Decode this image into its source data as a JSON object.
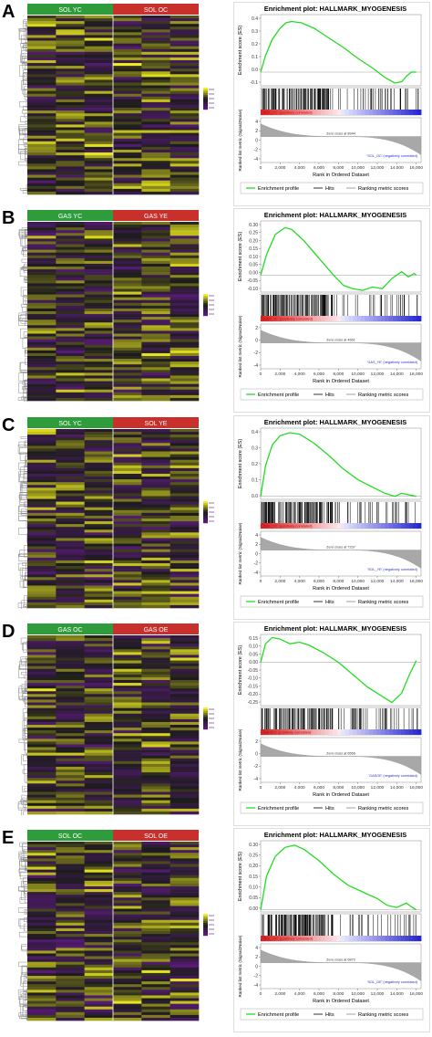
{
  "colors": {
    "group_left": "#2e9c3a",
    "group_right": "#c8302c",
    "heat_low": "#5a1a7a",
    "heat_mid": "#1c1c1c",
    "heat_high": "#f2f01e",
    "enrichment_line": "#22dd22",
    "hits": "#000000",
    "metric_fill": "#a8a8a8"
  },
  "panels": [
    {
      "letter": "A",
      "heatmap": {
        "group_left": "SOL YC",
        "group_right": "SOL OC",
        "seed": 11
      },
      "gsea": {
        "title": "Enrichment plot: HALLMARK_MYOGENESIS",
        "es_ticks": [
          "0.4",
          "0.3",
          "0.2",
          "0.1",
          "0.0",
          "-0.1"
        ],
        "es_range": [
          -0.1,
          0.42
        ],
        "es_curve": [
          [
            0,
            0
          ],
          [
            500,
            0.12
          ],
          [
            1200,
            0.24
          ],
          [
            2000,
            0.32
          ],
          [
            2600,
            0.36
          ],
          [
            3200,
            0.37
          ],
          [
            4200,
            0.36
          ],
          [
            5500,
            0.32
          ],
          [
            7000,
            0.25
          ],
          [
            8500,
            0.18
          ],
          [
            10000,
            0.1
          ],
          [
            11500,
            0.03
          ],
          [
            12800,
            -0.04
          ],
          [
            13800,
            -0.08
          ],
          [
            14500,
            -0.07
          ],
          [
            15000,
            -0.03
          ],
          [
            15500,
            0.0
          ],
          [
            16000,
            0.0
          ]
        ],
        "pos_label": "'SOL_YC' (positively correlated)",
        "neg_label": "'SOL_OC' (negatively correlated)",
        "zero_cross": "Zero cross at 8944",
        "metric_ticks": [
          "4",
          "2",
          "0",
          "-2",
          "-4"
        ],
        "x_ticks": [
          "0",
          "2,000",
          "4,000",
          "6,000",
          "8,000",
          "10,000",
          "12,000",
          "14,000",
          "16,000"
        ],
        "x_label": "Rank in Ordered Dataset",
        "y_label_es": "Enrichment score (ES)",
        "y_label_metric": "Ranked list metric (Signal2Noise)",
        "legend": [
          "Enrichment profile",
          "Hits",
          "Ranking metric scores"
        ],
        "hit_seed": 3
      }
    },
    {
      "letter": "B",
      "heatmap": {
        "group_left": "GAS YC",
        "group_right": "GAS YE",
        "seed": 23
      },
      "gsea": {
        "title": "Enrichment plot: HALLMARK_MYOGENESIS",
        "es_ticks": [
          "0.30",
          "0.25",
          "0.20",
          "0.15",
          "0.10",
          "0.05",
          "0.00",
          "-0.05",
          "-0.10"
        ],
        "es_range": [
          -0.1,
          0.32
        ],
        "es_curve": [
          [
            0,
            0
          ],
          [
            600,
            0.12
          ],
          [
            1500,
            0.24
          ],
          [
            2500,
            0.28
          ],
          [
            3200,
            0.27
          ],
          [
            4500,
            0.2
          ],
          [
            6000,
            0.1
          ],
          [
            7500,
            0.0
          ],
          [
            8500,
            -0.06
          ],
          [
            9500,
            -0.08
          ],
          [
            10500,
            -0.09
          ],
          [
            11500,
            -0.07
          ],
          [
            12500,
            -0.08
          ],
          [
            13500,
            -0.02
          ],
          [
            14500,
            0.02
          ],
          [
            15200,
            -0.01
          ],
          [
            15800,
            0.01
          ],
          [
            16000,
            0.0
          ]
        ],
        "pos_label": "'GAS_YC' (positively correlated)",
        "neg_label": "'GAS_YE' (negatively correlated)",
        "zero_cross": "Zero cross at 4661",
        "metric_ticks": [
          "2",
          "0",
          "-2",
          "-4"
        ],
        "x_ticks": [
          "0",
          "2,000",
          "4,000",
          "6,000",
          "8,000",
          "10,000",
          "12,000",
          "14,000",
          "16,000"
        ],
        "x_label": "Rank in Ordered Dataset",
        "y_label_es": "Enrichment score (ES)",
        "y_label_metric": "Ranked list metric (Signal2Noise)",
        "legend": [
          "Enrichment profile",
          "Hits",
          "Ranking metric scores"
        ],
        "hit_seed": 9
      }
    },
    {
      "letter": "C",
      "heatmap": {
        "group_left": "SOL YC",
        "group_right": "SOL YE",
        "seed": 37
      },
      "gsea": {
        "title": "Enrichment plot: HALLMARK_MYOGENESIS",
        "es_ticks": [
          "0.4",
          "0.3",
          "0.2",
          "0.1",
          "0.0"
        ],
        "es_range": [
          -0.02,
          0.45
        ],
        "es_curve": [
          [
            0,
            0
          ],
          [
            500,
            0.2
          ],
          [
            1200,
            0.34
          ],
          [
            2000,
            0.4
          ],
          [
            3000,
            0.42
          ],
          [
            4000,
            0.41
          ],
          [
            5500,
            0.35
          ],
          [
            7000,
            0.27
          ],
          [
            8500,
            0.18
          ],
          [
            10000,
            0.11
          ],
          [
            11500,
            0.06
          ],
          [
            12800,
            0.02
          ],
          [
            13800,
            0.0
          ],
          [
            14500,
            0.02
          ],
          [
            15200,
            0.01
          ],
          [
            16000,
            0.0
          ]
        ],
        "pos_label": "'SOL_YC' (positively correlated)",
        "neg_label": "'SOL_YE' (negatively correlated)",
        "zero_cross": "Zero cross at 7237",
        "metric_ticks": [
          "4",
          "2",
          "0",
          "-2",
          "-4"
        ],
        "x_ticks": [
          "0",
          "2,000",
          "4,000",
          "6,000",
          "8,000",
          "10,000",
          "12,000",
          "14,000",
          "16,000"
        ],
        "x_label": "Rank in Ordered Dataset",
        "y_label_es": "Enrichment score (ES)",
        "y_label_metric": "Ranked list metric (Signal2Noise)",
        "legend": [
          "Enrichment profile",
          "Hits",
          "Ranking metric scores"
        ],
        "hit_seed": 17
      }
    },
    {
      "letter": "D",
      "heatmap": {
        "group_left": "GAS OC",
        "group_right": "GAS OE",
        "seed": 51
      },
      "gsea": {
        "title": "Enrichment plot: HALLMARK_MYOGENESIS",
        "es_ticks": [
          "0.15",
          "0.10",
          "0.05",
          "0.00",
          "-0.05",
          "-0.10",
          "-0.15",
          "-0.20",
          "-0.25"
        ],
        "es_range": [
          -0.28,
          0.18
        ],
        "es_curve": [
          [
            0,
            0
          ],
          [
            500,
            0.12
          ],
          [
            1200,
            0.16
          ],
          [
            2000,
            0.15
          ],
          [
            3000,
            0.12
          ],
          [
            4000,
            0.13
          ],
          [
            5000,
            0.11
          ],
          [
            6500,
            0.06
          ],
          [
            8000,
            0.0
          ],
          [
            9500,
            -0.08
          ],
          [
            11000,
            -0.16
          ],
          [
            12500,
            -0.22
          ],
          [
            13500,
            -0.26
          ],
          [
            14500,
            -0.2
          ],
          [
            15300,
            -0.08
          ],
          [
            16000,
            0.01
          ]
        ],
        "pos_label": "'GASOC' (positively correlated)",
        "neg_label": "'GASOE' (negatively correlated)",
        "zero_cross": "Zero cross at 6566",
        "metric_ticks": [
          "2",
          "0",
          "-2",
          "-4"
        ],
        "x_ticks": [
          "0",
          "2,000",
          "4,000",
          "6,000",
          "8,000",
          "10,000",
          "12,000",
          "14,000",
          "16,000"
        ],
        "x_label": "Rank in Ordered Dataset",
        "y_label_es": "Enrichment score (ES)",
        "y_label_metric": "Ranked list metric (Signal2Noise)",
        "legend": [
          "Enrichment profile",
          "Hits",
          "Ranking metric scores"
        ],
        "hit_seed": 29
      }
    },
    {
      "letter": "E",
      "heatmap": {
        "group_left": "SOL OC",
        "group_right": "SOL OE",
        "seed": 67
      },
      "gsea": {
        "title": "Enrichment plot: HALLMARK_MYOGENESIS",
        "es_ticks": [
          "0.30",
          "0.25",
          "0.20",
          "0.15",
          "0.10",
          "0.05",
          "0.00"
        ],
        "es_range": [
          -0.01,
          0.31
        ],
        "es_curve": [
          [
            0,
            0
          ],
          [
            600,
            0.15
          ],
          [
            1500,
            0.24
          ],
          [
            2500,
            0.28
          ],
          [
            3500,
            0.29
          ],
          [
            4500,
            0.27
          ],
          [
            6000,
            0.22
          ],
          [
            7500,
            0.16
          ],
          [
            9000,
            0.11
          ],
          [
            10500,
            0.08
          ],
          [
            12000,
            0.05
          ],
          [
            13000,
            0.02
          ],
          [
            14000,
            0.01
          ],
          [
            15000,
            0.03
          ],
          [
            15600,
            0.01
          ],
          [
            16000,
            0.0
          ]
        ],
        "pos_label": "'SOL_OC' (positively correlated)",
        "neg_label": "'SOL_OE' (negatively correlated)",
        "zero_cross": "Zero cross at 6872",
        "metric_ticks": [
          "4",
          "2",
          "0",
          "-2",
          "-4"
        ],
        "x_ticks": [
          "0",
          "2,000",
          "4,000",
          "6,000",
          "8,000",
          "10,000",
          "12,000",
          "14,000",
          "16,000"
        ],
        "x_label": "Rank in Ordered Dataset",
        "y_label_es": "Enrichment score (ES)",
        "y_label_metric": "Ranked list metric (Signal2Noise)",
        "legend": [
          "Enrichment profile",
          "Hits",
          "Ranking metric scores"
        ],
        "hit_seed": 41
      }
    }
  ]
}
